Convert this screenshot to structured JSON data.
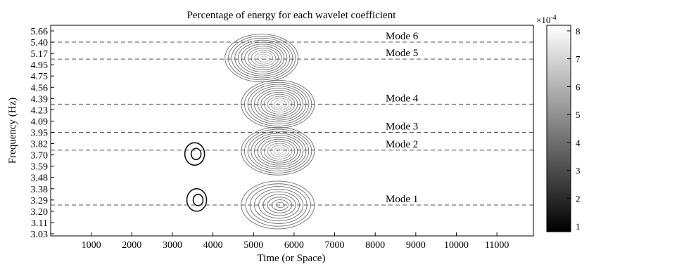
{
  "chart_data": {
    "type": "contour",
    "title": "Percentage of energy for each wavelet coefficient",
    "xlabel": "Time (or Space)",
    "ylabel": "Frequency (Hz)",
    "xlim": [
      0,
      11900
    ],
    "x_ticks": [
      1000,
      2000,
      3000,
      4000,
      5000,
      6000,
      7000,
      8000,
      9000,
      10000,
      11000
    ],
    "y_ticks": [
      "3.03",
      "3.11",
      "3.20",
      "3.29",
      "3.38",
      "3.48",
      "3.59",
      "3.70",
      "3.82",
      "3.95",
      "4.09",
      "4.23",
      "4.39",
      "4.56",
      "4.75",
      "4.95",
      "5.17",
      "5.40",
      "5.66"
    ],
    "grid": false,
    "modes": [
      {
        "label": "Mode 6",
        "frequency": 5.4
      },
      {
        "label": "Mode 5",
        "frequency": 5.06
      },
      {
        "label": "Mode 4",
        "frequency": 4.31
      },
      {
        "label": "Mode 3",
        "frequency": 3.95
      },
      {
        "label": "Mode 2",
        "frequency": 3.75
      },
      {
        "label": "Mode 1",
        "frequency": 3.25
      }
    ],
    "energy_blobs": [
      {
        "x": 5200,
        "frequency": 5.08,
        "level": 8
      },
      {
        "x": 5600,
        "frequency": 4.31,
        "level": 8
      },
      {
        "x": 5600,
        "frequency": 3.74,
        "level": 8
      },
      {
        "x": 5600,
        "frequency": 3.25,
        "level": 6
      },
      {
        "x": 3600,
        "frequency": 3.29,
        "level": 1
      },
      {
        "x": 3550,
        "frequency": 3.71,
        "level": 1
      }
    ],
    "colorbar": {
      "exponent_label": "×10",
      "exponent": "-4",
      "ticks": [
        "1",
        "2",
        "3",
        "4",
        "5",
        "6",
        "7",
        "8"
      ],
      "range": [
        0.8,
        8.2
      ]
    }
  }
}
